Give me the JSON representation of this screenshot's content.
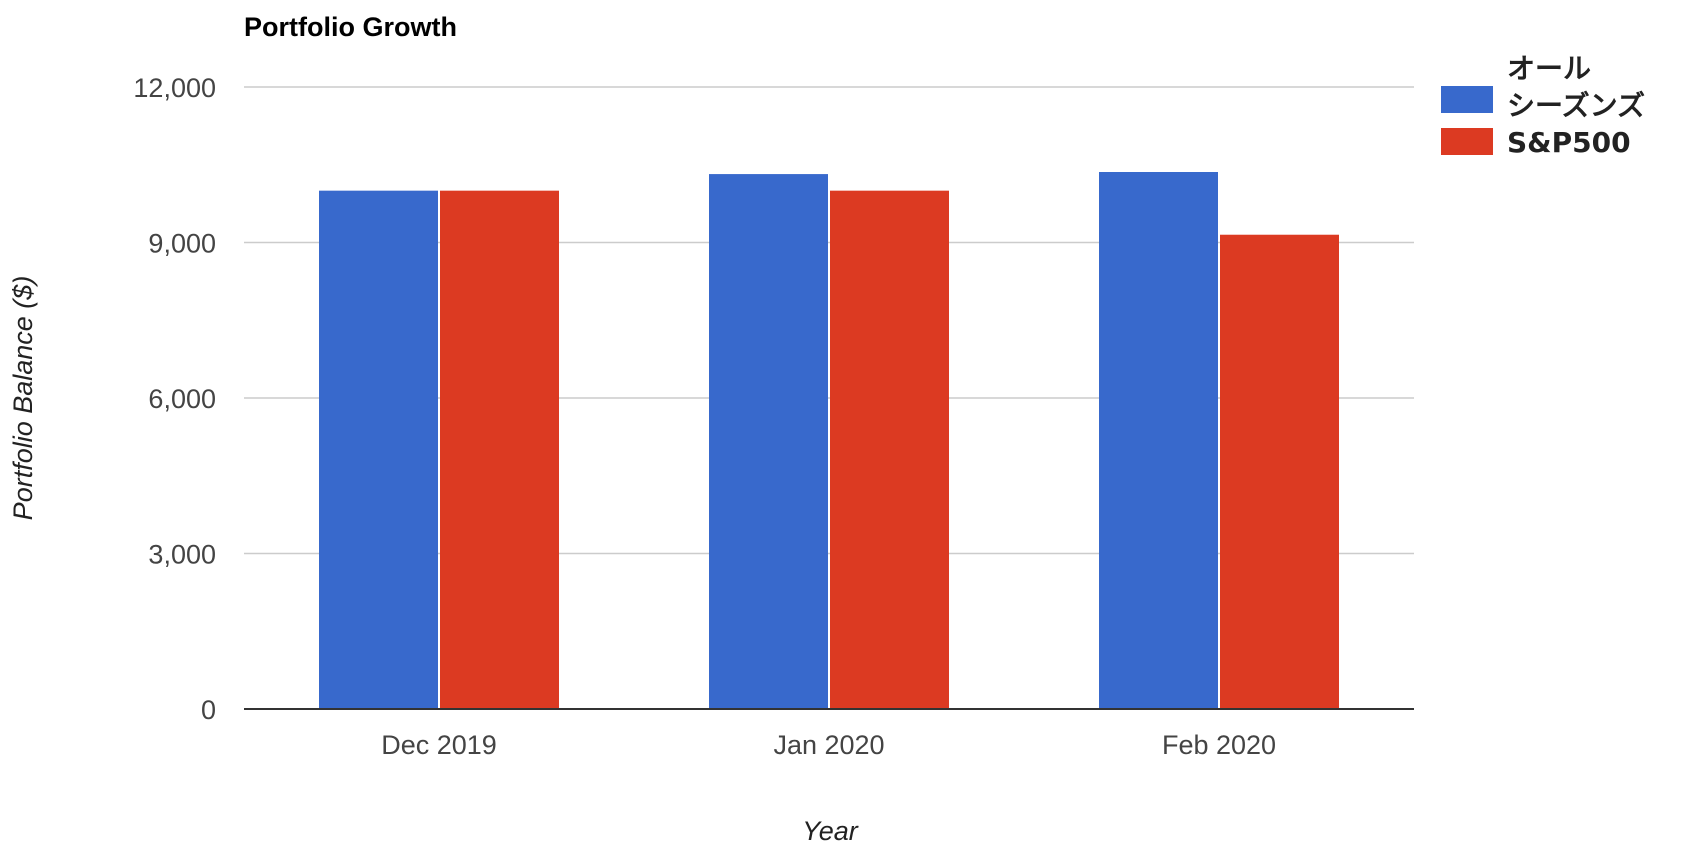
{
  "chart_data": {
    "type": "bar",
    "title": "Portfolio Growth",
    "xlabel": "Year",
    "ylabel": "Portfolio Balance ($)",
    "categories": [
      "Dec 2019",
      "Jan 2020",
      "Feb 2020"
    ],
    "series": [
      {
        "name": "オール シーズンズ",
        "color": "#3869cc",
        "values": [
          10000,
          10320,
          10360
        ]
      },
      {
        "name": "S&P500",
        "color": "#dc3a22",
        "values": [
          10000,
          10000,
          9150
        ]
      }
    ],
    "ylim": [
      0,
      12000
    ],
    "yticks": [
      0,
      3000,
      6000,
      9000,
      12000
    ],
    "ytick_labels": [
      "0",
      "3,000",
      "6,000",
      "9,000",
      "12,000"
    ],
    "grid": true,
    "legend_position": "top-right"
  }
}
